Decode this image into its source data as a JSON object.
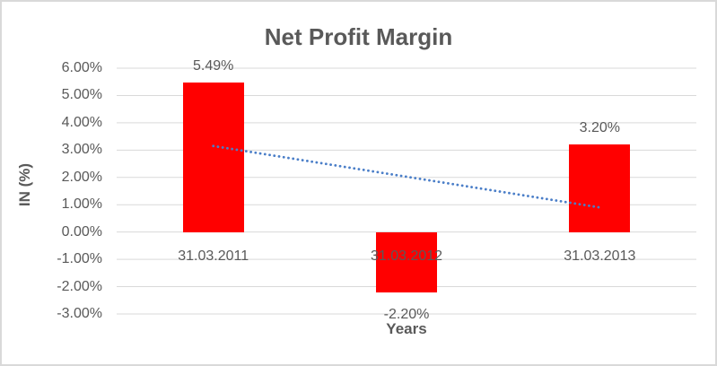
{
  "window": {
    "background": "#ffffff",
    "border_color": "#d9d9d9"
  },
  "chart_data": {
    "type": "bar",
    "title": "Net Profit Margin",
    "xlabel": "Years",
    "ylabel": "IN (%)",
    "categories": [
      "31.03.2011",
      "31.03.2012",
      "31.03.2013"
    ],
    "values": [
      5.49,
      -2.2,
      3.2
    ],
    "data_labels": [
      "5.49%",
      "-2.20%",
      "3.20%"
    ],
    "ytick_labels": [
      "6.00%",
      "5.00%",
      "4.00%",
      "3.00%",
      "2.00%",
      "1.00%",
      "0.00%",
      "-1.00%",
      "-2.00%",
      "-3.00%"
    ],
    "ylim": [
      -3,
      6
    ],
    "ytick_step": 1,
    "grid": true,
    "legend": "none",
    "bar_color": "#ff0000",
    "gridline_color": "#d9d9d9",
    "text_color": "#595959",
    "trendline": {
      "style": "dotted",
      "color": "#4a7ec8",
      "start_value": 3.15,
      "end_value": 0.9
    }
  }
}
